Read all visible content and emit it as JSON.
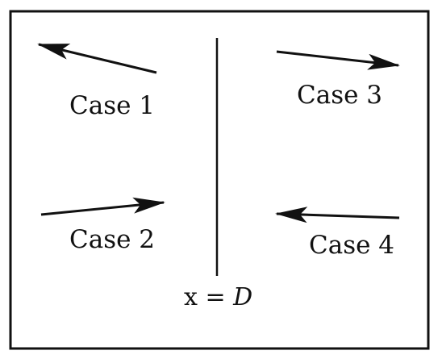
{
  "cases": [
    {
      "label": "Case 1",
      "direction": "left",
      "position": "upper-left"
    },
    {
      "label": "Case 2",
      "direction": "right",
      "position": "lower-left"
    },
    {
      "label": "Case 3",
      "direction": "right",
      "position": "upper-right"
    },
    {
      "label": "Case 4",
      "direction": "left",
      "position": "lower-right"
    }
  ],
  "divider": {
    "prefix": "x = ",
    "variable": "D"
  },
  "colors": {
    "ink": "#111111",
    "background": "#ffffff"
  }
}
